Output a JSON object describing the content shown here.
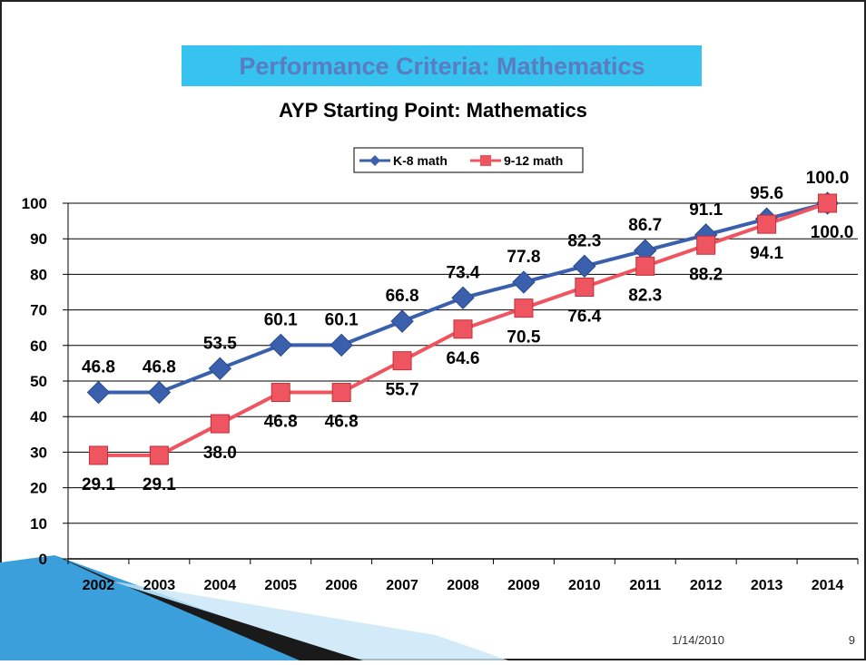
{
  "slide_title": "Performance Criteria: Mathematics",
  "date": "1/14/2010",
  "page_number": "9",
  "chart_data": {
    "type": "line",
    "title": "AYP Starting Point:  Mathematics",
    "categories": [
      "2002",
      "2003",
      "2004",
      "2005",
      "2006",
      "2007",
      "2008",
      "2009",
      "2010",
      "2011",
      "2012",
      "2013",
      "2014"
    ],
    "series": [
      {
        "name": "K-8 math",
        "color": "#3a5fad",
        "marker": "diamond",
        "values": [
          46.8,
          46.8,
          53.5,
          60.1,
          60.1,
          66.8,
          73.4,
          77.8,
          82.3,
          86.7,
          91.1,
          95.6,
          100.0
        ],
        "value_labels": [
          "46.8",
          "46.8",
          "53.5",
          "60.1",
          "60.1",
          "66.8",
          "73.4",
          "77.8",
          "82.3",
          "86.7",
          "91.1",
          "95.6",
          "100.0"
        ]
      },
      {
        "name": "9-12 math",
        "color": "#ee5560",
        "marker": "square",
        "values": [
          29.1,
          29.1,
          38.0,
          46.8,
          46.8,
          55.7,
          64.6,
          70.5,
          76.4,
          82.3,
          88.2,
          94.1,
          100.0
        ],
        "value_labels": [
          "29.1",
          "29.1",
          "38.0",
          "46.8",
          "46.8",
          "55.7",
          "64.6",
          "70.5",
          "76.4",
          "82.3",
          "88.2",
          "94.1",
          "100.0"
        ]
      }
    ],
    "ylim": [
      0,
      100
    ],
    "yticks": [
      0,
      10,
      20,
      30,
      40,
      50,
      60,
      70,
      80,
      90,
      100
    ],
    "grid": true
  }
}
